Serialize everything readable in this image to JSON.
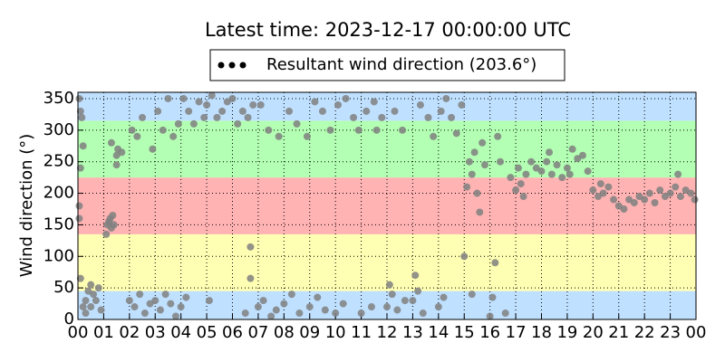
{
  "chart_data": {
    "type": "scatter",
    "title": "Latest time: 2023-12-17 00:00:00 UTC",
    "y_label": "Wind direction (°)",
    "xlim": [
      0,
      24
    ],
    "ylim": [
      0,
      360
    ],
    "xticks": [
      {
        "value": 0,
        "label": "00"
      },
      {
        "value": 1,
        "label": "01"
      },
      {
        "value": 2,
        "label": "02"
      },
      {
        "value": 3,
        "label": "03"
      },
      {
        "value": 4,
        "label": "04"
      },
      {
        "value": 5,
        "label": "05"
      },
      {
        "value": 6,
        "label": "06"
      },
      {
        "value": 7,
        "label": "07"
      },
      {
        "value": 8,
        "label": "08"
      },
      {
        "value": 9,
        "label": "09"
      },
      {
        "value": 10,
        "label": "10"
      },
      {
        "value": 11,
        "label": "11"
      },
      {
        "value": 12,
        "label": "12"
      },
      {
        "value": 13,
        "label": "13"
      },
      {
        "value": 14,
        "label": "14"
      },
      {
        "value": 15,
        "label": "15"
      },
      {
        "value": 16,
        "label": "16"
      },
      {
        "value": 17,
        "label": "17"
      },
      {
        "value": 18,
        "label": "18"
      },
      {
        "value": 19,
        "label": "19"
      },
      {
        "value": 20,
        "label": "20"
      },
      {
        "value": 21,
        "label": "21"
      },
      {
        "value": 22,
        "label": "22"
      },
      {
        "value": 23,
        "label": "23"
      },
      {
        "value": 24,
        "label": "00"
      }
    ],
    "yticks": [
      0,
      50,
      100,
      150,
      200,
      250,
      300,
      350
    ],
    "grid": true,
    "bands": [
      {
        "from": 0,
        "to": 45,
        "color": "#bfe0ff"
      },
      {
        "from": 45,
        "to": 135,
        "color": "#ffffb3"
      },
      {
        "from": 135,
        "to": 225,
        "color": "#ffb3b3"
      },
      {
        "from": 225,
        "to": 315,
        "color": "#b3ffb3"
      },
      {
        "from": 315,
        "to": 360,
        "color": "#bfe0ff"
      }
    ],
    "legend_position": "top",
    "series": [
      {
        "name": "Resultant wind direction (203.6°)",
        "color": "#808080",
        "x": [
          0.05,
          0.1,
          0.15,
          0.2,
          0.1,
          0.05,
          0.05,
          0.1,
          0.2,
          0.3,
          0.4,
          0.5,
          0.6,
          0.7,
          0.8,
          0.9,
          0.3,
          0.5,
          1.1,
          1.15,
          1.2,
          1.25,
          1.3,
          1.35,
          1.4,
          1.3,
          1.5,
          1.55,
          1.7,
          1.5,
          2.0,
          2.2,
          2.4,
          2.6,
          2.8,
          2.1,
          2.3,
          2.5,
          2.9,
          3.0,
          3.2,
          3.4,
          3.6,
          3.8,
          3.1,
          3.3,
          3.5,
          3.7,
          3.9,
          4.0,
          4.1,
          4.3,
          4.5,
          4.7,
          4.9,
          4.2,
          5.0,
          5.2,
          5.4,
          5.6,
          5.8,
          5.1,
          6.0,
          6.2,
          6.4,
          6.6,
          6.8,
          6.5,
          6.7,
          6.7,
          7.0,
          7.2,
          7.5,
          7.7,
          7.1,
          7.4,
          7.8,
          8.0,
          8.3,
          8.6,
          8.2,
          8.5,
          8.9,
          9.0,
          9.3,
          9.6,
          9.2,
          9.5,
          9.8,
          10.0,
          10.3,
          10.1,
          10.4,
          10.7,
          10.9,
          11.0,
          11.4,
          11.2,
          11.5,
          11.8,
          11.6,
          12.0,
          12.2,
          12.4,
          12.7,
          12.3,
          12.6,
          12.1,
          13.0,
          13.2,
          13.4,
          13.1,
          13.3,
          13.6,
          13.8,
          14.0,
          14.2,
          14.1,
          14.3,
          14.5,
          14.7,
          14.9,
          15.0,
          15.1,
          15.2,
          15.3,
          15.4,
          15.5,
          15.6,
          15.3,
          15.7,
          15.8,
          16.0,
          16.1,
          16.2,
          16.3,
          16.4,
          16.6,
          16.8,
          17.0,
          17.2,
          17.3,
          17.4,
          17.6,
          17.8,
          17.1,
          18.0,
          18.2,
          18.4,
          18.6,
          18.8,
          18.3,
          19.0,
          19.2,
          19.4,
          19.6,
          19.8,
          19.1,
          20.0,
          20.2,
          20.4,
          20.6,
          20.8,
          20.3,
          21.0,
          21.2,
          21.4,
          21.6,
          21.8,
          22.0,
          22.2,
          22.4,
          22.6,
          22.8,
          23.0,
          23.2,
          23.4,
          23.6,
          23.8,
          23.95,
          23.3
        ],
        "values": [
          350,
          330,
          320,
          275,
          240,
          180,
          160,
          65,
          20,
          30,
          45,
          55,
          40,
          30,
          50,
          15,
          10,
          20,
          135,
          150,
          155,
          160,
          145,
          165,
          150,
          280,
          260,
          270,
          265,
          245,
          30,
          20,
          40,
          10,
          25,
          300,
          290,
          320,
          270,
          30,
          15,
          40,
          25,
          5,
          330,
          300,
          350,
          290,
          310,
          20,
          350,
          330,
          310,
          345,
          320,
          35,
          340,
          355,
          320,
          330,
          345,
          30,
          350,
          310,
          330,
          320,
          340,
          10,
          115,
          65,
          20,
          30,
          5,
          15,
          340,
          300,
          290,
          25,
          40,
          10,
          330,
          310,
          290,
          20,
          35,
          15,
          345,
          330,
          300,
          10,
          25,
          340,
          350,
          320,
          300,
          10,
          20,
          330,
          345,
          320,
          300,
          20,
          40,
          15,
          30,
          330,
          300,
          55,
          30,
          45,
          10,
          70,
          340,
          320,
          290,
          20,
          35,
          330,
          350,
          320,
          295,
          340,
          100,
          210,
          250,
          230,
          265,
          200,
          170,
          40,
          280,
          245,
          5,
          35,
          90,
          290,
          250,
          10,
          225,
          205,
          215,
          195,
          230,
          250,
          240,
          240,
          235,
          250,
          230,
          245,
          225,
          265,
          240,
          270,
          255,
          260,
          235,
          230,
          205,
          195,
          200,
          210,
          190,
          215,
          180,
          175,
          190,
          185,
          195,
          190,
          200,
          185,
          205,
          195,
          200,
          210,
          195,
          205,
          200,
          190,
          230
        ]
      }
    ]
  }
}
